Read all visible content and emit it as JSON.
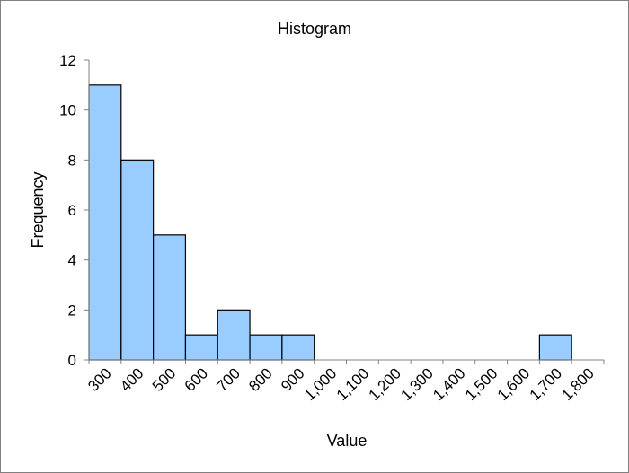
{
  "chart_data": {
    "type": "bar",
    "title": "Histogram",
    "xlabel": "Value",
    "ylabel": "Frequency",
    "categories": [
      "300",
      "400",
      "500",
      "600",
      "700",
      "800",
      "900",
      "1,000",
      "1,100",
      "1,200",
      "1,300",
      "1,400",
      "1,500",
      "1,600",
      "1,700",
      "1,800"
    ],
    "values": [
      11,
      8,
      5,
      1,
      2,
      1,
      1,
      0,
      0,
      0,
      0,
      0,
      0,
      0,
      1,
      0
    ],
    "ylim": [
      0,
      12
    ],
    "yticks": [
      0,
      2,
      4,
      6,
      8,
      10,
      12
    ],
    "bar_color": "#99ccff",
    "grid": false,
    "legend": "none"
  }
}
